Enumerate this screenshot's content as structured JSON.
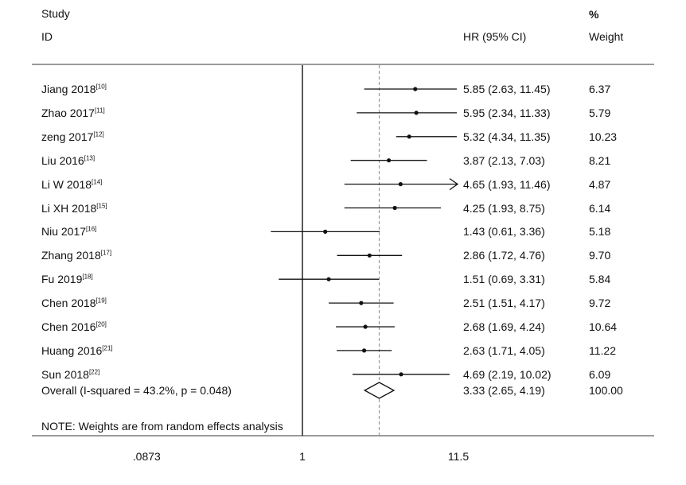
{
  "header": {
    "study_label": "Study",
    "id_label": "ID",
    "hr_label": "HR (95% CI)",
    "pct_label": "%",
    "weight_label": "Weight"
  },
  "note": "NOTE: Weights are from random effects analysis",
  "chart_data": {
    "type": "forest",
    "x_scale": "log",
    "xticks": [
      ".0873",
      "1",
      "11.5"
    ],
    "xtick_values": [
      0.0873,
      1,
      11.5
    ],
    "xlim": [
      0.0873,
      11.5
    ],
    "null_line": 1,
    "overall_line": 3.33,
    "studies": [
      {
        "name": "Jiang 2018",
        "ref": "[10]",
        "hr": 5.85,
        "lo": 2.63,
        "hi": 11.45,
        "ci_text": "5.85 (2.63, 11.45)",
        "weight": "6.37"
      },
      {
        "name": "Zhao 2017",
        "ref": "[11]",
        "hr": 5.95,
        "lo": 2.34,
        "hi": 11.33,
        "ci_text": "5.95 (2.34, 11.33)",
        "weight": "5.79"
      },
      {
        "name": "zeng 2017",
        "ref": "[12]",
        "hr": 5.32,
        "lo": 4.34,
        "hi": 11.35,
        "ci_text": "5.32 (4.34, 11.35)",
        "weight": "10.23"
      },
      {
        "name": "Liu 2016",
        "ref": "[13]",
        "hr": 3.87,
        "lo": 2.13,
        "hi": 7.03,
        "ci_text": "3.87 (2.13, 7.03)",
        "weight": "8.21"
      },
      {
        "name": "Li W 2018",
        "ref": "[14]",
        "hr": 4.65,
        "lo": 1.93,
        "hi": 11.46,
        "ci_text": "4.65 (1.93, 11.46)",
        "weight": "4.87",
        "arrow": true
      },
      {
        "name": "Li XH 2018",
        "ref": "[15]",
        "hr": 4.25,
        "lo": 1.93,
        "hi": 8.75,
        "ci_text": "4.25 (1.93, 8.75)",
        "weight": "6.14"
      },
      {
        "name": "Niu 2017",
        "ref": "[16]",
        "hr": 1.43,
        "lo": 0.61,
        "hi": 3.36,
        "ci_text": "1.43 (0.61, 3.36)",
        "weight": "5.18"
      },
      {
        "name": "Zhang 2018",
        "ref": "[17]",
        "hr": 2.86,
        "lo": 1.72,
        "hi": 4.76,
        "ci_text": "2.86 (1.72, 4.76)",
        "weight": "9.70"
      },
      {
        "name": "Fu 2019",
        "ref": "[18]",
        "hr": 1.51,
        "lo": 0.69,
        "hi": 3.31,
        "ci_text": "1.51 (0.69, 3.31)",
        "weight": "5.84"
      },
      {
        "name": "Chen 2018",
        "ref": "[19]",
        "hr": 2.51,
        "lo": 1.51,
        "hi": 4.17,
        "ci_text": "2.51 (1.51, 4.17)",
        "weight": "9.72"
      },
      {
        "name": "Chen 2016",
        "ref": "[20]",
        "hr": 2.68,
        "lo": 1.69,
        "hi": 4.24,
        "ci_text": "2.68 (1.69, 4.24)",
        "weight": "10.64"
      },
      {
        "name": "Huang 2016",
        "ref": "[21]",
        "hr": 2.63,
        "lo": 1.71,
        "hi": 4.05,
        "ci_text": "2.63 (1.71, 4.05)",
        "weight": "11.22"
      },
      {
        "name": "Sun 2018",
        "ref": "[22]",
        "hr": 4.69,
        "lo": 2.19,
        "hi": 10.02,
        "ci_text": "4.69 (2.19, 10.02)",
        "weight": "6.09"
      }
    ],
    "overall": {
      "label": "Overall  (I-squared = 43.2%, p = 0.048)",
      "hr": 3.33,
      "lo": 2.65,
      "hi": 4.19,
      "ci_text": "3.33 (2.65, 4.19)",
      "weight": "100.00"
    }
  }
}
